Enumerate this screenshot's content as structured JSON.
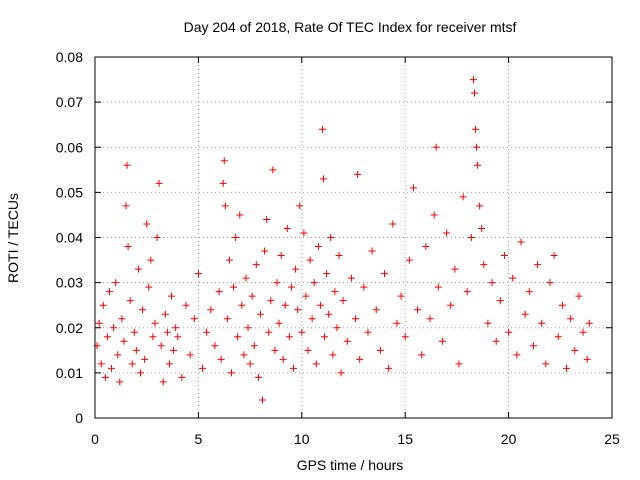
{
  "chart_data": {
    "type": "scatter",
    "title": "Day 204 of 2018, Rate Of TEC Index for receiver mtsf",
    "xlabel": "GPS time / hours",
    "ylabel": "ROTI / TECUs",
    "xlim": [
      0,
      25
    ],
    "ylim": [
      0,
      0.08
    ],
    "xticks": [
      "0",
      "5",
      "10",
      "15",
      "20",
      "25"
    ],
    "yticks": [
      "0",
      "0.01",
      "0.02",
      "0.03",
      "0.04",
      "0.05",
      "0.06",
      "0.07",
      "0.08"
    ],
    "grid": true,
    "marker": "+",
    "color": "#ff0000",
    "series": [
      {
        "name": "ROTI",
        "points": [
          [
            0.1,
            0.016
          ],
          [
            0.2,
            0.021
          ],
          [
            0.3,
            0.012
          ],
          [
            0.4,
            0.025
          ],
          [
            0.5,
            0.009
          ],
          [
            0.6,
            0.018
          ],
          [
            0.7,
            0.028
          ],
          [
            0.8,
            0.011
          ],
          [
            0.9,
            0.02
          ],
          [
            1.0,
            0.03
          ],
          [
            1.1,
            0.014
          ],
          [
            1.2,
            0.008
          ],
          [
            1.3,
            0.022
          ],
          [
            1.4,
            0.017
          ],
          [
            1.5,
            0.047
          ],
          [
            1.55,
            0.056
          ],
          [
            1.6,
            0.038
          ],
          [
            1.7,
            0.026
          ],
          [
            1.8,
            0.012
          ],
          [
            1.9,
            0.019
          ],
          [
            2.0,
            0.015
          ],
          [
            2.1,
            0.033
          ],
          [
            2.2,
            0.01
          ],
          [
            2.3,
            0.024
          ],
          [
            2.4,
            0.013
          ],
          [
            2.5,
            0.043
          ],
          [
            2.6,
            0.029
          ],
          [
            2.7,
            0.035
          ],
          [
            2.8,
            0.018
          ],
          [
            2.9,
            0.021
          ],
          [
            3.0,
            0.04
          ],
          [
            3.1,
            0.052
          ],
          [
            3.2,
            0.016
          ],
          [
            3.3,
            0.008
          ],
          [
            3.4,
            0.023
          ],
          [
            3.5,
            0.019
          ],
          [
            3.6,
            0.012
          ],
          [
            3.7,
            0.027
          ],
          [
            3.8,
            0.015
          ],
          [
            3.9,
            0.02
          ],
          [
            4.0,
            0.018
          ],
          [
            4.2,
            0.009
          ],
          [
            4.4,
            0.025
          ],
          [
            4.6,
            0.014
          ],
          [
            4.8,
            0.022
          ],
          [
            5.0,
            0.032
          ],
          [
            5.2,
            0.011
          ],
          [
            5.4,
            0.019
          ],
          [
            5.6,
            0.024
          ],
          [
            5.8,
            0.016
          ],
          [
            6.0,
            0.028
          ],
          [
            6.1,
            0.013
          ],
          [
            6.2,
            0.052
          ],
          [
            6.25,
            0.057
          ],
          [
            6.3,
            0.047
          ],
          [
            6.4,
            0.022
          ],
          [
            6.5,
            0.035
          ],
          [
            6.6,
            0.01
          ],
          [
            6.7,
            0.029
          ],
          [
            6.8,
            0.04
          ],
          [
            6.9,
            0.018
          ],
          [
            7.0,
            0.045
          ],
          [
            7.1,
            0.025
          ],
          [
            7.2,
            0.014
          ],
          [
            7.3,
            0.031
          ],
          [
            7.4,
            0.02
          ],
          [
            7.5,
            0.012
          ],
          [
            7.6,
            0.027
          ],
          [
            7.7,
            0.016
          ],
          [
            7.8,
            0.034
          ],
          [
            7.9,
            0.009
          ],
          [
            8.0,
            0.023
          ],
          [
            8.1,
            0.004
          ],
          [
            8.2,
            0.037
          ],
          [
            8.3,
            0.044
          ],
          [
            8.4,
            0.019
          ],
          [
            8.5,
            0.026
          ],
          [
            8.6,
            0.055
          ],
          [
            8.7,
            0.015
          ],
          [
            8.8,
            0.03
          ],
          [
            8.9,
            0.021
          ],
          [
            9.0,
            0.036
          ],
          [
            9.1,
            0.013
          ],
          [
            9.2,
            0.025
          ],
          [
            9.3,
            0.042
          ],
          [
            9.4,
            0.018
          ],
          [
            9.5,
            0.029
          ],
          [
            9.6,
            0.011
          ],
          [
            9.7,
            0.033
          ],
          [
            9.8,
            0.024
          ],
          [
            9.9,
            0.047
          ],
          [
            10.0,
            0.019
          ],
          [
            10.1,
            0.041
          ],
          [
            10.2,
            0.027
          ],
          [
            10.3,
            0.015
          ],
          [
            10.4,
            0.035
          ],
          [
            10.5,
            0.022
          ],
          [
            10.6,
            0.03
          ],
          [
            10.7,
            0.012
          ],
          [
            10.8,
            0.038
          ],
          [
            10.9,
            0.025
          ],
          [
            11.0,
            0.064
          ],
          [
            11.05,
            0.053
          ],
          [
            11.1,
            0.018
          ],
          [
            11.2,
            0.032
          ],
          [
            11.3,
            0.023
          ],
          [
            11.4,
            0.04
          ],
          [
            11.5,
            0.014
          ],
          [
            11.6,
            0.028
          ],
          [
            11.7,
            0.02
          ],
          [
            11.8,
            0.036
          ],
          [
            11.9,
            0.01
          ],
          [
            12.0,
            0.026
          ],
          [
            12.2,
            0.017
          ],
          [
            12.4,
            0.031
          ],
          [
            12.6,
            0.022
          ],
          [
            12.7,
            0.054
          ],
          [
            12.8,
            0.013
          ],
          [
            13.0,
            0.029
          ],
          [
            13.2,
            0.019
          ],
          [
            13.4,
            0.037
          ],
          [
            13.6,
            0.024
          ],
          [
            13.8,
            0.015
          ],
          [
            14.0,
            0.032
          ],
          [
            14.2,
            0.011
          ],
          [
            14.4,
            0.043
          ],
          [
            14.6,
            0.021
          ],
          [
            14.8,
            0.027
          ],
          [
            15.0,
            0.018
          ],
          [
            15.2,
            0.035
          ],
          [
            15.4,
            0.051
          ],
          [
            15.6,
            0.024
          ],
          [
            15.8,
            0.014
          ],
          [
            16.0,
            0.038
          ],
          [
            16.2,
            0.022
          ],
          [
            16.4,
            0.045
          ],
          [
            16.5,
            0.06
          ],
          [
            16.6,
            0.029
          ],
          [
            16.8,
            0.017
          ],
          [
            17.0,
            0.041
          ],
          [
            17.2,
            0.025
          ],
          [
            17.4,
            0.033
          ],
          [
            17.6,
            0.012
          ],
          [
            17.8,
            0.049
          ],
          [
            18.0,
            0.028
          ],
          [
            18.2,
            0.04
          ],
          [
            18.3,
            0.075
          ],
          [
            18.35,
            0.072
          ],
          [
            18.4,
            0.064
          ],
          [
            18.45,
            0.06
          ],
          [
            18.5,
            0.056
          ],
          [
            18.6,
            0.047
          ],
          [
            18.7,
            0.042
          ],
          [
            18.8,
            0.034
          ],
          [
            19.0,
            0.021
          ],
          [
            19.2,
            0.03
          ],
          [
            19.4,
            0.017
          ],
          [
            19.6,
            0.026
          ],
          [
            19.8,
            0.036
          ],
          [
            20.0,
            0.019
          ],
          [
            20.2,
            0.031
          ],
          [
            20.4,
            0.014
          ],
          [
            20.6,
            0.039
          ],
          [
            20.8,
            0.023
          ],
          [
            21.0,
            0.028
          ],
          [
            21.2,
            0.016
          ],
          [
            21.4,
            0.034
          ],
          [
            21.6,
            0.021
          ],
          [
            21.8,
            0.012
          ],
          [
            22.0,
            0.03
          ],
          [
            22.2,
            0.036
          ],
          [
            22.4,
            0.018
          ],
          [
            22.6,
            0.025
          ],
          [
            22.8,
            0.011
          ],
          [
            23.0,
            0.022
          ],
          [
            23.2,
            0.015
          ],
          [
            23.4,
            0.027
          ],
          [
            23.6,
            0.019
          ],
          [
            23.8,
            0.013
          ],
          [
            23.9,
            0.021
          ]
        ]
      }
    ]
  }
}
